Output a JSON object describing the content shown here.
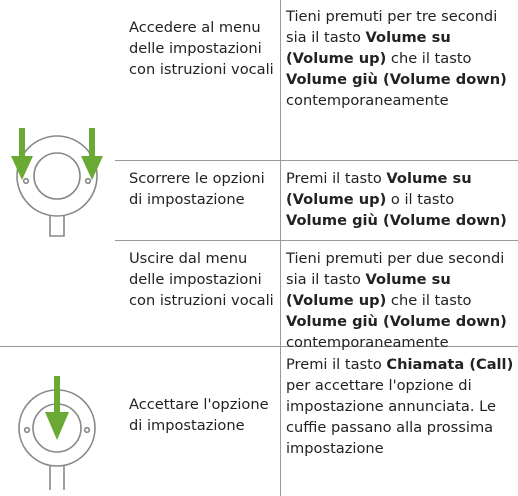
{
  "rows": [
    {
      "action": "Accedere al menu delle impostazioni con istruzioni vocali",
      "instruction": [
        {
          "text": "Tieni premuti per tre secondi sia il tasto "
        },
        {
          "bold": "Volume su (Volume up)"
        },
        {
          "text": " che il tasto "
        },
        {
          "bold": "Volume giù (Volume down)"
        },
        {
          "text": " contemporaneamente"
        }
      ]
    },
    {
      "action": "Scorrere le opzioni di impostazione",
      "instruction": [
        {
          "text": "Premi il tasto "
        },
        {
          "bold": "Volume su (Volume up)"
        },
        {
          "text": " o il tasto "
        },
        {
          "bold": "Volume giù (Volume down)"
        }
      ]
    },
    {
      "action": "Uscire dal menu delle impostazioni con istruzioni vocali",
      "instruction": [
        {
          "text": "Tieni premuti per due secondi sia il tasto "
        },
        {
          "bold": "Volume su (Volume up)"
        },
        {
          "text": " che il tasto "
        },
        {
          "bold": "Volume giù (Volume down)"
        },
        {
          "text": " contemporaneamente"
        }
      ]
    },
    {
      "action": "Accettare l'opzione di impostazione",
      "instruction": [
        {
          "text": "Premi il tasto "
        },
        {
          "bold": "Chiamata (Call)"
        },
        {
          "text": " per accettare l'opzione di impostazione annunciata. Le cuffie passano alla prossima impostazione"
        }
      ]
    }
  ]
}
